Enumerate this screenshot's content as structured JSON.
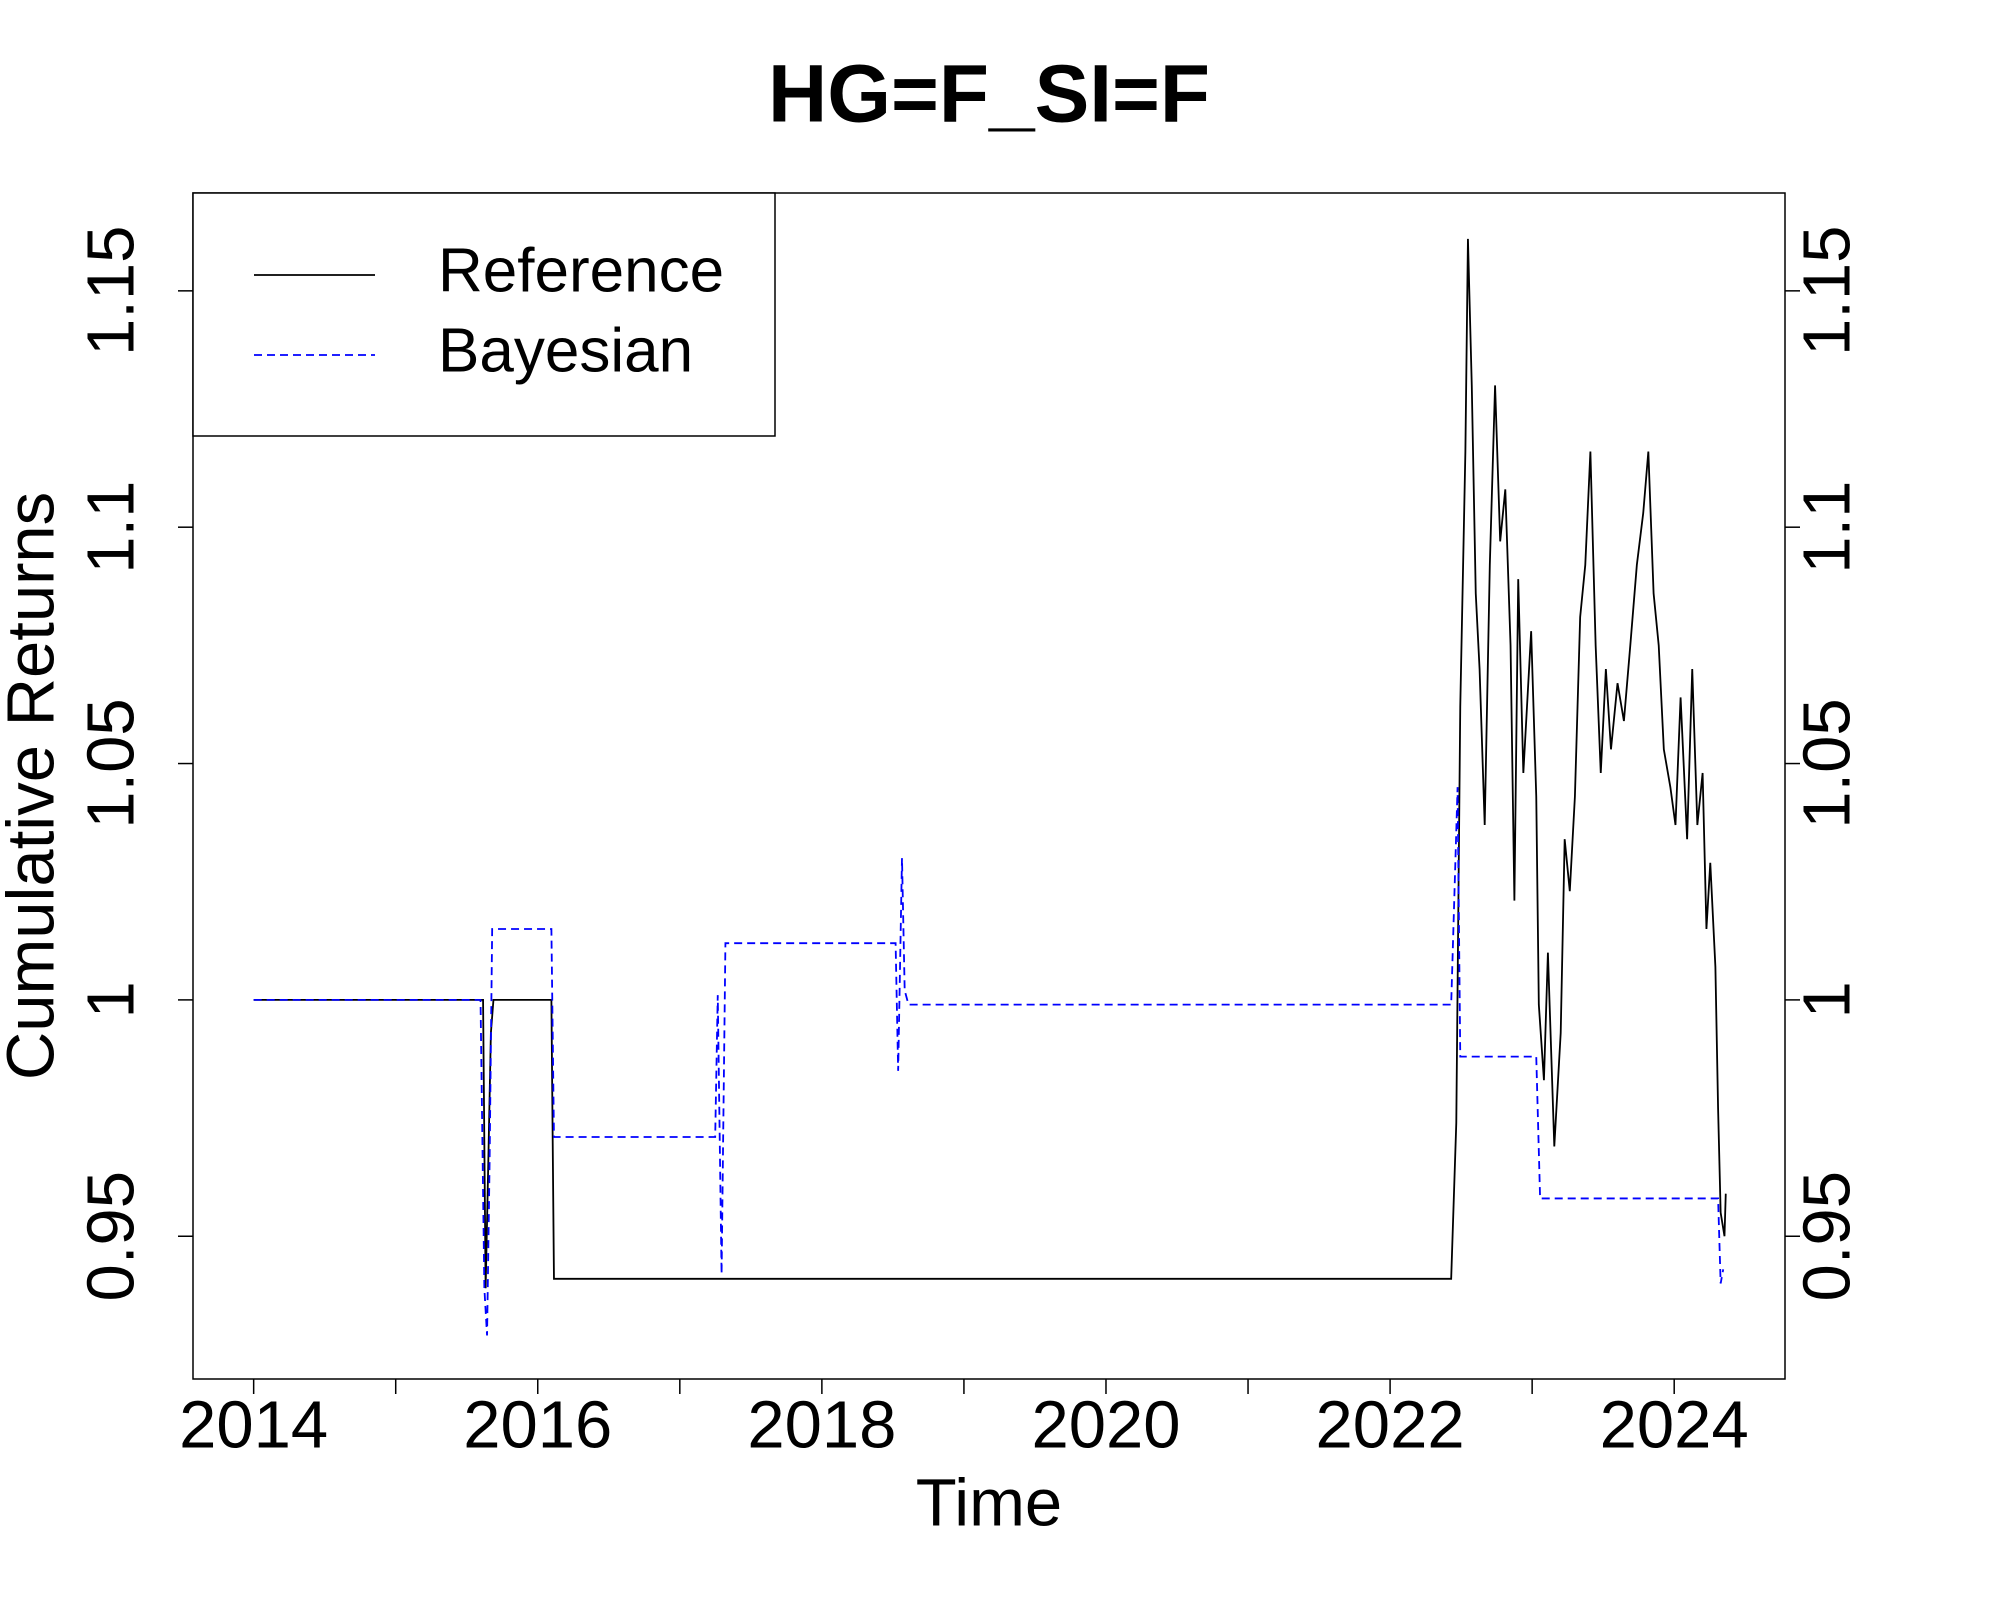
{
  "chart_data": {
    "type": "line",
    "title": "HG=F_SI=F",
    "xlabel": "Time",
    "ylabel": "Cumulative Returns",
    "xlim": [
      2013.573,
      2024.78
    ],
    "xticks": [
      2014,
      2016,
      2018,
      2020,
      2022,
      2024
    ],
    "xminor_ticks": [
      2015,
      2017,
      2019,
      2021,
      2023
    ],
    "ylim": [
      0.9198,
      1.1707
    ],
    "yticks": [
      0.95,
      1,
      1.05,
      1.1,
      1.15
    ],
    "right_axis": true,
    "legend": "topleft",
    "series": [
      {
        "name": "Reference",
        "color": "#000000",
        "dash": false,
        "x": [
          2014,
          2015.615,
          2015.633,
          2015.652,
          2015.67,
          2015.688,
          2016.096,
          2016.114,
          2022.43,
          2022.466,
          2022.494,
          2022.53,
          2022.548,
          2022.575,
          2022.603,
          2022.63,
          2022.666,
          2022.702,
          2022.739,
          2022.775,
          2022.811,
          2022.848,
          2022.875,
          2022.902,
          2022.938,
          2022.993,
          2023.029,
          2023.047,
          2023.083,
          2023.111,
          2023.156,
          2023.201,
          2023.229,
          2023.265,
          2023.301,
          2023.338,
          2023.374,
          2023.41,
          2023.447,
          2023.483,
          2023.519,
          2023.555,
          2023.601,
          2023.646,
          2023.691,
          2023.737,
          2023.782,
          2023.818,
          2023.855,
          2023.891,
          2023.927,
          2023.973,
          2024.009,
          2024.045,
          2024.091,
          2024.127,
          2024.163,
          2024.2,
          2024.227,
          2024.254,
          2024.29,
          2024.309,
          2024.327,
          2024.354,
          2024.363
        ],
        "values": [
          1,
          1,
          0.939,
          0.966,
          0.993,
          1,
          1,
          0.941,
          0.941,
          0.974,
          1.062,
          1.116,
          1.161,
          1.13,
          1.086,
          1.07,
          1.037,
          1.092,
          1.13,
          1.097,
          1.108,
          1.075,
          1.021,
          1.089,
          1.048,
          1.078,
          1.043,
          0.999,
          0.983,
          1.01,
          0.969,
          0.993,
          1.034,
          1.023,
          1.043,
          1.081,
          1.092,
          1.116,
          1.075,
          1.048,
          1.07,
          1.053,
          1.067,
          1.059,
          1.075,
          1.092,
          1.103,
          1.116,
          1.086,
          1.075,
          1.053,
          1.045,
          1.037,
          1.064,
          1.034,
          1.07,
          1.037,
          1.048,
          1.015,
          1.029,
          1.007,
          0.977,
          0.955,
          0.95,
          0.959
        ]
      },
      {
        "name": "Bayesian",
        "color": "#0000ff",
        "dash": true,
        "x": [
          2014,
          2015.597,
          2015.624,
          2015.643,
          2015.661,
          2015.679,
          2016.096,
          2016.114,
          2017.249,
          2017.267,
          2017.294,
          2017.321,
          2018.519,
          2018.537,
          2018.564,
          2018.583,
          2018.61,
          2022.43,
          2022.475,
          2022.494,
          2023.029,
          2023.056,
          2024.309,
          2024.327,
          2024.345
        ],
        "values": [
          1,
          1,
          0.939,
          0.929,
          0.966,
          1.015,
          1.015,
          0.971,
          0.971,
          1.001,
          0.942,
          1.012,
          1.012,
          0.985,
          1.03,
          1.002,
          0.999,
          0.999,
          1.045,
          0.988,
          0.988,
          0.958,
          0.958,
          0.94,
          0.943
        ]
      }
    ]
  }
}
